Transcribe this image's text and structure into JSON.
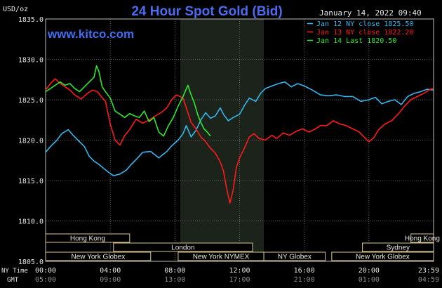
{
  "header": {
    "title": "24 Hour Spot Gold (Bid)",
    "units": "USD/oz",
    "datetime": "January 14, 2022 09:40",
    "watermark": "www.kitco.com"
  },
  "legend": [
    {
      "text": "Jan 12 NY close 1825.50",
      "color": "#35b6ef"
    },
    {
      "text": "Jan 13 NY close 1822.20",
      "color": "#ff1a1a"
    },
    {
      "text": "Jan 14 Last 1820.50",
      "color": "#2ee82e"
    }
  ],
  "sessions": [
    {
      "label": "Hong Kong",
      "start": 0,
      "end": 5.2,
      "row": 0
    },
    {
      "label": "Hong Kong",
      "start": 22.6,
      "end": 24,
      "row": 0
    },
    {
      "label": "London",
      "start": 4.2,
      "end": 12.8,
      "row": 1
    },
    {
      "label": "Sydney",
      "start": 19.6,
      "end": 24,
      "row": 1
    },
    {
      "label": "New York Globex",
      "start": 0,
      "end": 6.5,
      "row": 2
    },
    {
      "label": "New York NYMEX",
      "start": 8.2,
      "end": 13.5,
      "row": 2
    },
    {
      "label": "NY Globex",
      "start": 13.5,
      "end": 17.3,
      "row": 2
    },
    {
      "label": "New York Globex",
      "start": 17.7,
      "end": 24,
      "row": 2
    }
  ],
  "x_axis": {
    "ny_label": "NY Time",
    "gmt_label": "GMT",
    "ny_ticks": [
      "00:00",
      "04:00",
      "08:00",
      "12:00",
      "16:00",
      "20:00",
      "23:59"
    ],
    "gmt_ticks": [
      "05:00",
      "09:00",
      "13:00",
      "17:00",
      "21:00",
      "01:00",
      "04:59"
    ]
  },
  "chart_data": {
    "type": "line",
    "title": "24 Hour Spot Gold (Bid)",
    "ylabel": "USD/oz",
    "ylim": [
      1805,
      1835
    ],
    "yticks": [
      1805.0,
      1810.0,
      1815.0,
      1820.0,
      1825.0,
      1830.0,
      1835.0
    ],
    "ytick_labels": [
      "1805.0",
      "1810.0",
      "1815.0",
      "1820.0",
      "1825.0",
      "1830.0",
      "1835.0"
    ],
    "xlim_hours": [
      0,
      24
    ],
    "shaded_hours": [
      8.33,
      13.5
    ],
    "grid": true,
    "legend_position": "top-right",
    "series": [
      {
        "name": "Jan 12 NY close 1825.50",
        "color": "#35b6ef",
        "x": [
          0,
          0.3,
          0.7,
          1.0,
          1.4,
          1.7,
          2.0,
          2.4,
          2.7,
          3.0,
          3.3,
          3.6,
          3.9,
          4.2,
          4.6,
          5.0,
          5.3,
          5.7,
          6.0,
          6.5,
          7.0,
          7.5,
          7.8,
          8.2,
          8.5,
          8.7,
          9.0,
          9.3,
          9.6,
          9.9,
          10.2,
          10.5,
          10.8,
          11.0,
          11.3,
          11.6,
          12.0,
          12.3,
          12.6,
          13.0,
          13.3,
          13.6,
          14.0,
          14.4,
          14.8,
          15.2,
          15.6,
          16.0,
          16.5,
          17.0,
          17.5,
          18.0,
          18.5,
          19.0,
          19.5,
          20.0,
          20.4,
          20.8,
          21.2,
          21.6,
          22.0,
          22.4,
          22.8,
          23.2,
          23.6,
          23.99
        ],
        "y": [
          1818.5,
          1819.2,
          1820.0,
          1820.8,
          1821.3,
          1820.6,
          1820.0,
          1819.2,
          1818.0,
          1817.4,
          1817.0,
          1816.5,
          1816.0,
          1815.6,
          1815.8,
          1816.3,
          1817.0,
          1817.8,
          1818.5,
          1818.6,
          1817.8,
          1818.6,
          1819.3,
          1820.0,
          1820.8,
          1821.8,
          1820.4,
          1821.2,
          1822.5,
          1823.4,
          1822.7,
          1823.0,
          1824.0,
          1823.2,
          1822.4,
          1822.8,
          1823.2,
          1824.3,
          1825.2,
          1824.8,
          1825.8,
          1826.4,
          1826.7,
          1827.0,
          1827.2,
          1826.6,
          1827.0,
          1826.7,
          1826.2,
          1825.6,
          1825.5,
          1825.6,
          1825.4,
          1825.4,
          1824.8,
          1825.0,
          1825.3,
          1824.5,
          1824.8,
          1825.0,
          1824.4,
          1825.4,
          1825.8,
          1826.0,
          1826.3,
          1826.2
        ]
      },
      {
        "name": "Jan 13 NY close 1822.20",
        "color": "#ff1a1a",
        "x": [
          0,
          0.3,
          0.6,
          0.9,
          1.2,
          1.5,
          1.8,
          2.2,
          2.6,
          2.9,
          3.2,
          3.4,
          3.7,
          4.0,
          4.3,
          4.6,
          4.9,
          5.2,
          5.6,
          6.0,
          6.4,
          6.8,
          7.2,
          7.5,
          7.8,
          8.1,
          8.5,
          8.8,
          9.0,
          9.3,
          9.6,
          9.9,
          10.2,
          10.5,
          10.8,
          11.0,
          11.2,
          11.4,
          11.6,
          11.8,
          12.0,
          12.3,
          12.6,
          12.9,
          13.2,
          13.6,
          14.0,
          14.3,
          14.7,
          15.1,
          15.5,
          15.9,
          16.3,
          16.7,
          17.0,
          17.4,
          17.8,
          18.2,
          18.6,
          19.0,
          19.4,
          19.7,
          20.0,
          20.3,
          20.6,
          21.0,
          21.4,
          21.8,
          22.2,
          22.6,
          23.0,
          23.4,
          23.8,
          23.99
        ],
        "y": [
          1826.2,
          1827.0,
          1827.6,
          1827.0,
          1826.6,
          1826.2,
          1825.6,
          1825.1,
          1825.8,
          1826.2,
          1826.0,
          1825.5,
          1824.8,
          1822.0,
          1820.0,
          1819.4,
          1820.6,
          1821.3,
          1822.6,
          1822.1,
          1822.5,
          1823.0,
          1823.5,
          1824.0,
          1825.0,
          1825.6,
          1825.2,
          1823.4,
          1822.2,
          1821.4,
          1820.4,
          1819.8,
          1819.0,
          1818.4,
          1817.3,
          1816.2,
          1814.0,
          1812.2,
          1813.8,
          1816.6,
          1817.8,
          1819.0,
          1820.4,
          1820.8,
          1820.2,
          1820.0,
          1820.6,
          1820.2,
          1820.9,
          1820.6,
          1821.1,
          1821.4,
          1821.0,
          1821.4,
          1821.8,
          1821.8,
          1822.4,
          1822.0,
          1821.8,
          1821.4,
          1821.0,
          1820.4,
          1819.8,
          1820.3,
          1821.3,
          1822.0,
          1822.4,
          1823.2,
          1824.2,
          1825.0,
          1825.4,
          1825.8,
          1826.3,
          1826.4
        ]
      },
      {
        "name": "Jan 14 Last 1820.50",
        "color": "#2ee82e",
        "x": [
          0,
          0.3,
          0.6,
          0.9,
          1.2,
          1.5,
          1.8,
          2.1,
          2.4,
          2.7,
          3.0,
          3.15,
          3.3,
          3.5,
          3.7,
          4.0,
          4.3,
          4.6,
          4.9,
          5.2,
          5.5,
          5.8,
          6.1,
          6.4,
          6.7,
          7.0,
          7.3,
          7.6,
          7.9,
          8.2,
          8.5,
          8.8,
          9.0,
          9.2,
          9.4,
          9.6,
          9.8,
          10.0,
          10.2
        ],
        "y": [
          1826.0,
          1826.4,
          1826.8,
          1827.2,
          1826.8,
          1827.0,
          1826.4,
          1826.0,
          1826.6,
          1827.2,
          1827.8,
          1829.2,
          1828.5,
          1826.6,
          1826.0,
          1825.2,
          1823.6,
          1823.2,
          1822.8,
          1823.3,
          1823.0,
          1822.8,
          1823.6,
          1822.3,
          1822.8,
          1821.0,
          1820.5,
          1821.8,
          1822.8,
          1824.2,
          1825.4,
          1826.8,
          1825.6,
          1824.6,
          1823.2,
          1822.2,
          1821.4,
          1821.0,
          1820.5
        ]
      }
    ]
  }
}
